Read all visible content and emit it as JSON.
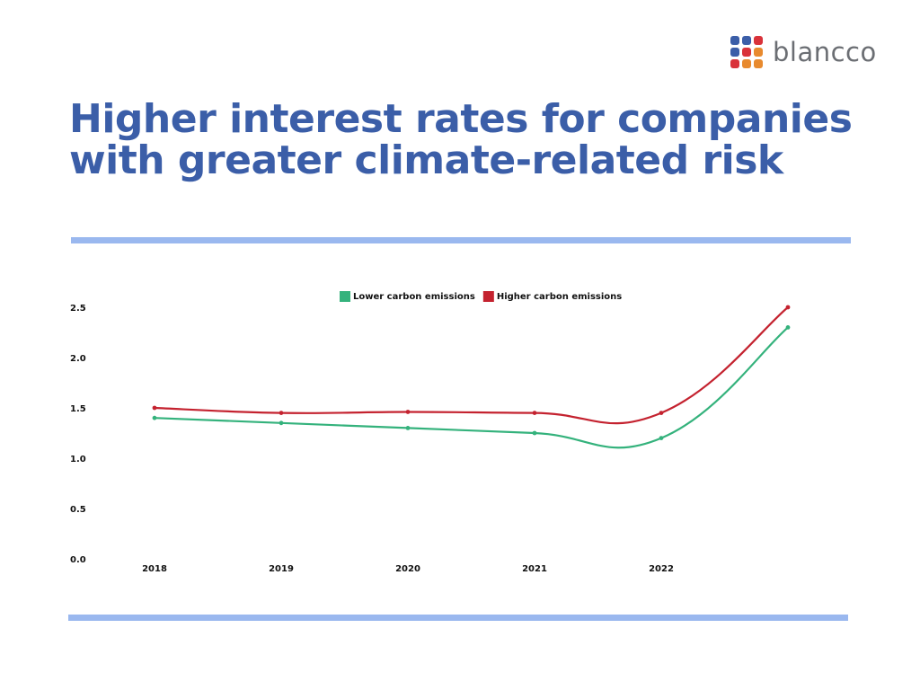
{
  "brand": {
    "name": "blancco",
    "dot_colors": [
      "#3b5ea8",
      "#3b5ea8",
      "#d9323a",
      "#3b5ea8",
      "#d9323a",
      "#e88a2e",
      "#d9323a",
      "#e88a2e",
      "#e88a2e"
    ]
  },
  "title": "Higher interest rates for companies with greater climate-related risk",
  "colors": {
    "title": "#3b5ea8",
    "rule": "#9ab8ef",
    "lower": "#34b27c",
    "higher": "#c4222f"
  },
  "chart_data": {
    "type": "line",
    "title": "",
    "xlabel": "",
    "ylabel": "",
    "categories": [
      "2018",
      "2019",
      "2020",
      "2021",
      "2022",
      ""
    ],
    "y_ticks": [
      "0.0",
      "0.5",
      "1.0",
      "1.5",
      "2.0",
      "2.5"
    ],
    "ylim": [
      0,
      2.5
    ],
    "grid": false,
    "legend_position": "top-center",
    "series": [
      {
        "name": "Lower carbon emissions",
        "color": "#34b27c",
        "values": [
          1.4,
          1.35,
          1.3,
          1.25,
          1.2,
          2.3
        ]
      },
      {
        "name": "Higher carbon emissions",
        "color": "#c4222f",
        "values": [
          1.5,
          1.45,
          1.46,
          1.45,
          1.45,
          2.5
        ]
      }
    ]
  }
}
